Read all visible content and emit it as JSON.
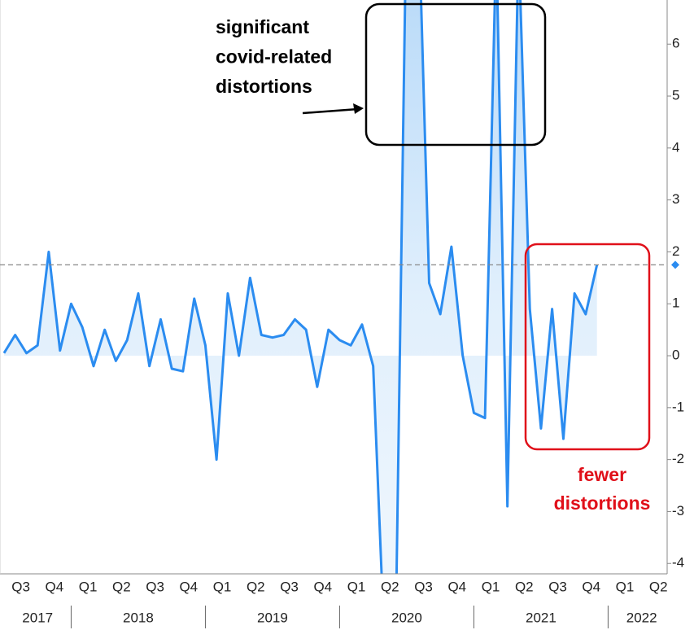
{
  "chart_data": {
    "type": "line",
    "x": [
      2017.5,
      2017.583,
      2017.667,
      2017.75,
      2017.833,
      2017.917,
      2018,
      2018.083,
      2018.167,
      2018.25,
      2018.333,
      2018.417,
      2018.5,
      2018.583,
      2018.667,
      2018.75,
      2018.833,
      2018.917,
      2019,
      2019.083,
      2019.167,
      2019.25,
      2019.333,
      2019.417,
      2019.5,
      2019.583,
      2019.667,
      2019.75,
      2019.833,
      2019.917,
      2020,
      2020.083,
      2020.167,
      2020.25,
      2020.333,
      2020.417,
      2020.5,
      2020.583,
      2020.667,
      2020.75,
      2020.833,
      2020.917,
      2021,
      2021.083,
      2021.167,
      2021.25,
      2021.333,
      2021.417,
      2021.5,
      2021.583,
      2021.667,
      2021.75,
      2021.833,
      2021.917
    ],
    "values": [
      0.05,
      0.4,
      0.05,
      0.2,
      2.0,
      0.1,
      1.0,
      0.55,
      -0.2,
      0.5,
      -0.1,
      0.3,
      1.2,
      -0.2,
      0.7,
      -0.25,
      -0.3,
      1.1,
      0.2,
      -2.0,
      1.2,
      0.0,
      1.5,
      0.4,
      0.35,
      0.4,
      0.7,
      0.5,
      -0.6,
      0.5,
      0.3,
      0.2,
      0.6,
      -0.2,
      -5.5,
      -5.5,
      9.0,
      9.0,
      1.4,
      0.8,
      2.1,
      0.0,
      -1.1,
      -1.2,
      8.0,
      -2.9,
      8.0,
      0.9,
      -1.4,
      0.9,
      -1.6,
      1.2,
      0.8,
      1.75
    ],
    "color": "#2b8cf0",
    "area_color": "#a9d2f7",
    "xlim": [
      2017.47,
      2022.44
    ],
    "ylim": [
      -4.2,
      6.85
    ],
    "yticks": [
      -4,
      -3,
      -2,
      -1,
      0,
      1,
      2,
      3,
      4,
      5,
      6
    ],
    "xticks": [
      {
        "value": 2017.625,
        "label": "Q3"
      },
      {
        "value": 2017.875,
        "label": "Q4"
      },
      {
        "value": 2018.125,
        "label": "Q1"
      },
      {
        "value": 2018.375,
        "label": "Q2"
      },
      {
        "value": 2018.625,
        "label": "Q3"
      },
      {
        "value": 2018.875,
        "label": "Q4"
      },
      {
        "value": 2019.125,
        "label": "Q1"
      },
      {
        "value": 2019.375,
        "label": "Q2"
      },
      {
        "value": 2019.625,
        "label": "Q3"
      },
      {
        "value": 2019.875,
        "label": "Q4"
      },
      {
        "value": 2020.125,
        "label": "Q1"
      },
      {
        "value": 2020.375,
        "label": "Q2"
      },
      {
        "value": 2020.625,
        "label": "Q3"
      },
      {
        "value": 2020.875,
        "label": "Q4"
      },
      {
        "value": 2021.125,
        "label": "Q1"
      },
      {
        "value": 2021.375,
        "label": "Q2"
      },
      {
        "value": 2021.625,
        "label": "Q3"
      },
      {
        "value": 2021.875,
        "label": "Q4"
      },
      {
        "value": 2022.125,
        "label": "Q1"
      },
      {
        "value": 2022.375,
        "label": "Q2"
      }
    ],
    "year_labels": [
      {
        "value": 2017.75,
        "label": "2017"
      },
      {
        "value": 2018.5,
        "label": "2018"
      },
      {
        "value": 2019.5,
        "label": "2019"
      },
      {
        "value": 2020.5,
        "label": "2020"
      },
      {
        "value": 2021.5,
        "label": "2021"
      },
      {
        "value": 2022.25,
        "label": "2022"
      }
    ],
    "annotations": [
      {
        "lines": [
          "significant",
          "covid-related",
          "distortions"
        ],
        "color": "#000000"
      },
      {
        "lines": [
          "fewer",
          "distortions"
        ],
        "color": "#e0101a"
      }
    ]
  }
}
